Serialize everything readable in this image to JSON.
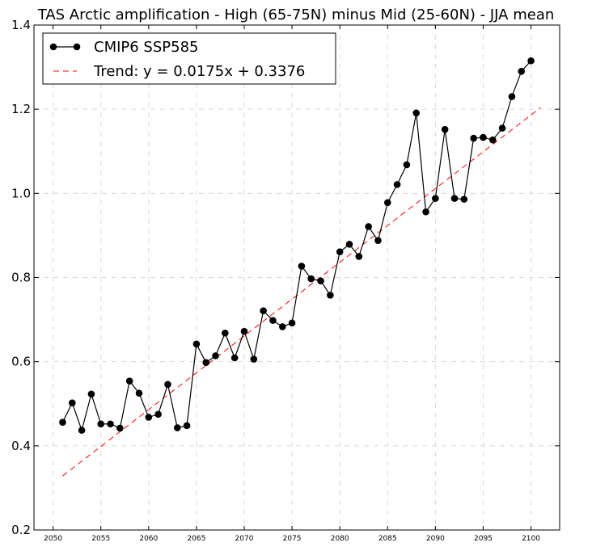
{
  "chart_data": {
    "type": "line",
    "title": "TAS Arctic amplification - High (65-75N) minus Mid (25-60N) - JJA mean",
    "xlabel": "",
    "ylabel": "",
    "xlim": [
      2048,
      2103
    ],
    "ylim": [
      0.2,
      1.4
    ],
    "xticks": [
      2050,
      2055,
      2060,
      2065,
      2070,
      2075,
      2080,
      2085,
      2090,
      2095,
      2100
    ],
    "xtick_labels": [
      "2050",
      "2055",
      "2060",
      "2065",
      "2070",
      "2075",
      "2080",
      "2085",
      "2090",
      "2095",
      "2100"
    ],
    "yticks": [
      0.2,
      0.4,
      0.6,
      0.8,
      1.0,
      1.2,
      1.4
    ],
    "ytick_labels": [
      "0.2",
      "0.4",
      "0.6",
      "0.8",
      "1.0",
      "1.2",
      "1.4"
    ],
    "grid": true,
    "legend_position": "top-left",
    "series": [
      {
        "name": "CMIP6 SSP585",
        "color": "#000000",
        "style": "line-with-markers",
        "x": [
          2051,
          2052,
          2053,
          2054,
          2055,
          2056,
          2057,
          2058,
          2059,
          2060,
          2061,
          2062,
          2063,
          2064,
          2065,
          2066,
          2067,
          2068,
          2069,
          2070,
          2071,
          2072,
          2073,
          2074,
          2075,
          2076,
          2077,
          2078,
          2079,
          2080,
          2081,
          2082,
          2083,
          2084,
          2085,
          2086,
          2087,
          2088,
          2089,
          2090,
          2091,
          2092,
          2093,
          2094,
          2095,
          2096,
          2097,
          2098,
          2099,
          2100
        ],
        "values": [
          0.456,
          0.502,
          0.437,
          0.523,
          0.452,
          0.452,
          0.442,
          0.554,
          0.525,
          0.468,
          0.475,
          0.546,
          0.443,
          0.448,
          0.642,
          0.598,
          0.614,
          0.668,
          0.609,
          0.672,
          0.606,
          0.721,
          0.698,
          0.683,
          0.692,
          0.827,
          0.797,
          0.792,
          0.758,
          0.861,
          0.879,
          0.85,
          0.921,
          0.888,
          0.978,
          1.021,
          1.068,
          1.191,
          0.956,
          0.988,
          1.152,
          0.988,
          0.986,
          1.131,
          1.133,
          1.127,
          1.155,
          1.23,
          1.29,
          1.315
        ]
      },
      {
        "name": "Trend: y = 0.0175x + 0.3376",
        "color": "#ff0000",
        "style": "dashed",
        "x": [
          2051,
          2101
        ],
        "values": [
          0.3285,
          1.2038
        ]
      }
    ]
  }
}
